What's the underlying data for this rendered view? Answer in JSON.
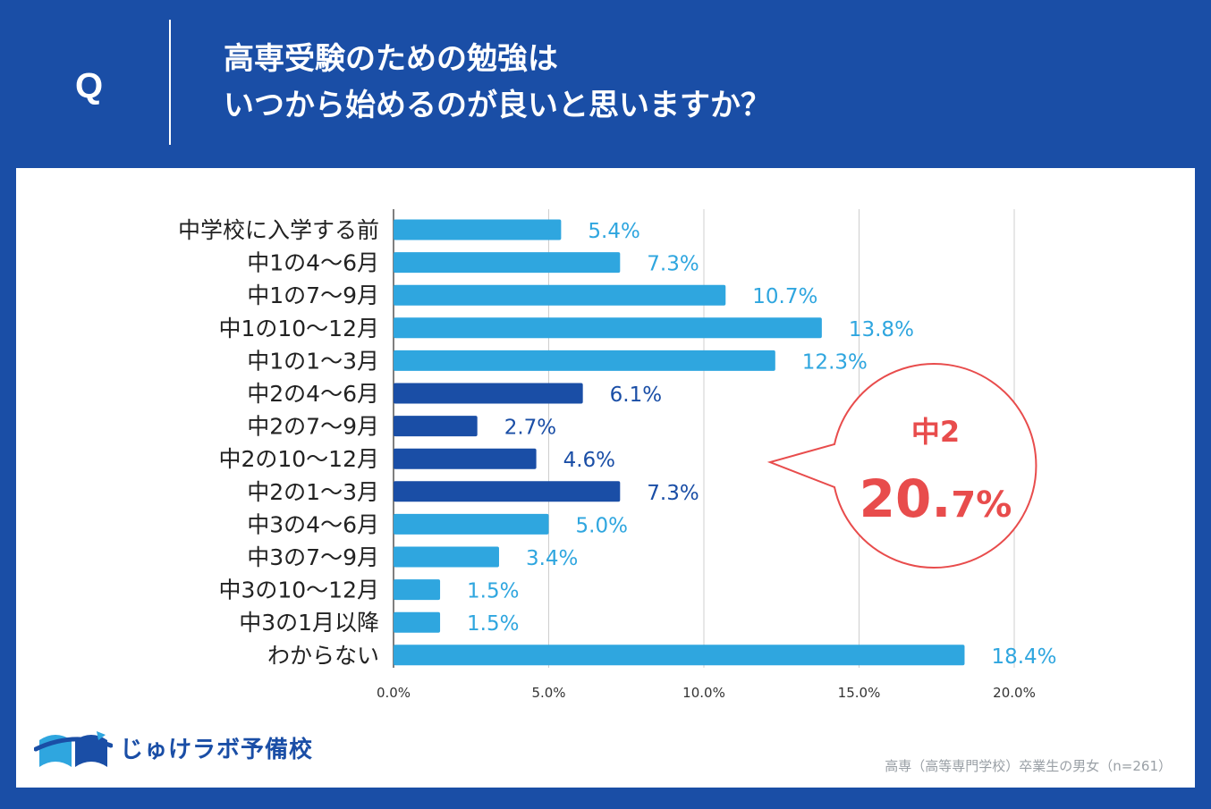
{
  "header": {
    "q_mark": "Q",
    "title_line1": "高専受験のための勉強は",
    "title_line2": "いつから始めるのが良いと思いますか？"
  },
  "callout": {
    "label": "中2",
    "value_main": "20.",
    "value_decimal": "7",
    "value_unit": "%"
  },
  "logo": {
    "name": "じゅけラボ予備校"
  },
  "footnote": "高専（高等専門学校）卒業生の男女（n=261）",
  "colors": {
    "background": "#1a4ea6",
    "bar_light": "#2fa6df",
    "bar_dark": "#1a4ea6",
    "callout": "#e84c4c",
    "grid": "#cfcfcf"
  },
  "chart_data": {
    "type": "bar",
    "orientation": "horizontal",
    "categories": [
      "中学校に入学する前",
      "中1の4〜6月",
      "中1の7〜9月",
      "中1の10〜12月",
      "中1の1〜3月",
      "中2の4〜6月",
      "中2の7〜9月",
      "中2の10〜12月",
      "中2の1〜3月",
      "中3の4〜6月",
      "中3の7〜9月",
      "中3の10〜12月",
      "中3の1月以降",
      "わからない"
    ],
    "values": [
      5.4,
      7.3,
      10.7,
      13.8,
      12.3,
      6.1,
      2.7,
      4.6,
      7.3,
      5.0,
      3.4,
      1.5,
      1.5,
      18.4
    ],
    "value_labels": [
      "5.4%",
      "7.3%",
      "10.7%",
      "13.8%",
      "12.3%",
      "6.1%",
      "2.7%",
      "4.6%",
      "7.3%",
      "5.0%",
      "3.4%",
      "1.5%",
      "1.5%",
      "18.4%"
    ],
    "highlight": [
      false,
      false,
      false,
      false,
      false,
      true,
      true,
      true,
      true,
      false,
      false,
      false,
      false,
      false
    ],
    "xlim": [
      0,
      20
    ],
    "xticks": [
      0,
      5,
      10,
      15,
      20
    ],
    "xtick_labels": [
      "0.0%",
      "5.0%",
      "10.0%",
      "15.0%",
      "20.0%"
    ],
    "title": "",
    "xlabel": "",
    "ylabel": ""
  }
}
